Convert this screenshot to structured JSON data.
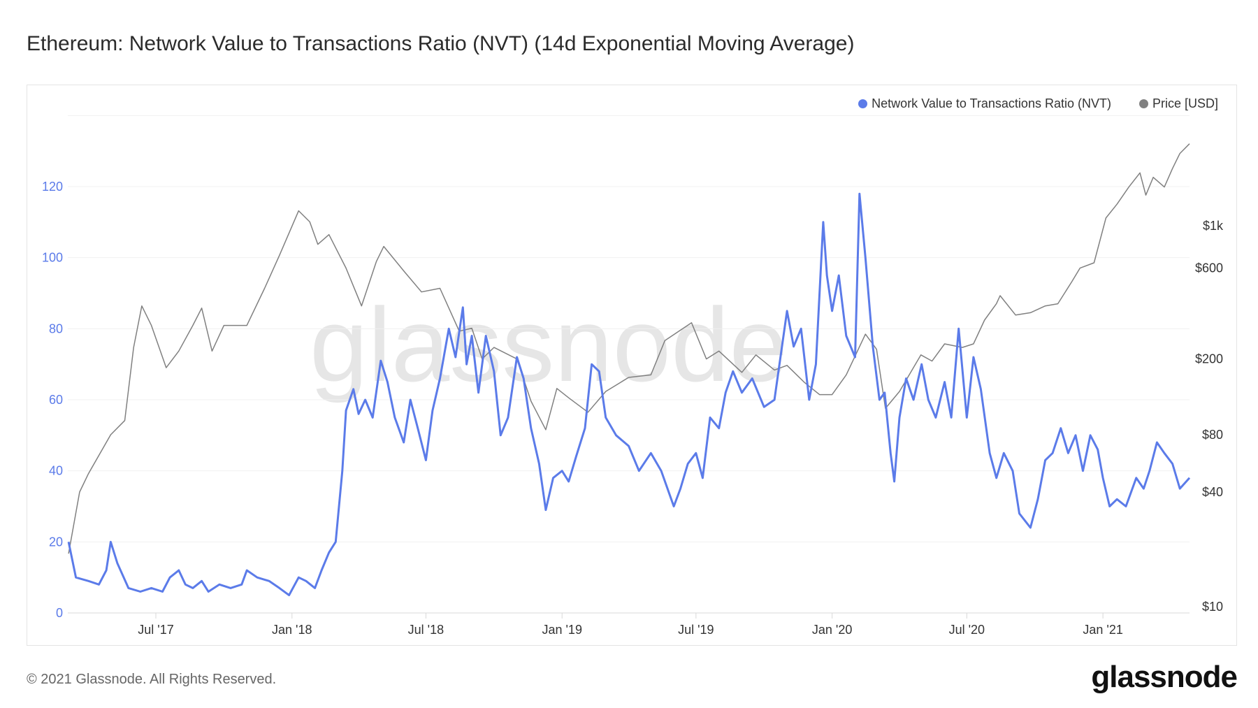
{
  "title": "Ethereum: Network Value to Transactions Ratio (NVT) (14d Exponential Moving Average)",
  "footer": "© 2021 Glassnode. All Rights Reserved.",
  "logo": "glassnode",
  "watermark": "glassnode",
  "chart_data": {
    "type": "line",
    "title": "Ethereum: Network Value to Transactions Ratio (NVT) (14d Exponential Moving Average)",
    "legend_placement": "top-right",
    "grid": true,
    "x_range": [
      "2017-03-04",
      "2021-04-28"
    ],
    "x_ticks": [
      {
        "label": "Jul '17",
        "date": "2017-07-01"
      },
      {
        "label": "Jan '18",
        "date": "2018-01-01"
      },
      {
        "label": "Jul '18",
        "date": "2018-07-01"
      },
      {
        "label": "Jan '19",
        "date": "2019-01-01"
      },
      {
        "label": "Jul '19",
        "date": "2019-07-01"
      },
      {
        "label": "Jan '20",
        "date": "2020-01-01"
      },
      {
        "label": "Jul '20",
        "date": "2020-07-01"
      },
      {
        "label": "Jan '21",
        "date": "2021-01-01"
      }
    ],
    "y_left": {
      "range": [
        0,
        140
      ],
      "ticks": [
        0,
        20,
        40,
        60,
        80,
        100,
        120
      ],
      "color": "#5b7be9"
    },
    "y_right": {
      "scale": "log",
      "range": [
        10,
        2900
      ],
      "ticks": [
        {
          "value": 10,
          "label": "$10"
        },
        {
          "value": 40,
          "label": "$40"
        },
        {
          "value": 80,
          "label": "$80"
        },
        {
          "value": 200,
          "label": "$200"
        },
        {
          "value": 600,
          "label": "$600"
        },
        {
          "value": 1000,
          "label": "$1k"
        }
      ]
    },
    "series": [
      {
        "name": "Network Value to Transactions Ratio (NVT)",
        "color": "#5b7be9",
        "axis": "left",
        "points": [
          [
            "2017-03-05",
            20
          ],
          [
            "2017-03-15",
            10
          ],
          [
            "2017-04-01",
            9
          ],
          [
            "2017-04-15",
            8
          ],
          [
            "2017-04-25",
            12
          ],
          [
            "2017-05-01",
            20
          ],
          [
            "2017-05-10",
            14
          ],
          [
            "2017-05-25",
            7
          ],
          [
            "2017-06-10",
            6
          ],
          [
            "2017-06-25",
            7
          ],
          [
            "2017-07-10",
            6
          ],
          [
            "2017-07-20",
            10
          ],
          [
            "2017-08-01",
            12
          ],
          [
            "2017-08-10",
            8
          ],
          [
            "2017-08-20",
            7
          ],
          [
            "2017-09-01",
            9
          ],
          [
            "2017-09-10",
            6
          ],
          [
            "2017-09-25",
            8
          ],
          [
            "2017-10-10",
            7
          ],
          [
            "2017-10-25",
            8
          ],
          [
            "2017-11-01",
            12
          ],
          [
            "2017-11-15",
            10
          ],
          [
            "2017-12-01",
            9
          ],
          [
            "2017-12-15",
            7
          ],
          [
            "2017-12-28",
            5
          ],
          [
            "2018-01-10",
            10
          ],
          [
            "2018-01-20",
            9
          ],
          [
            "2018-02-01",
            7
          ],
          [
            "2018-02-10",
            12
          ],
          [
            "2018-02-20",
            17
          ],
          [
            "2018-03-01",
            20
          ],
          [
            "2018-03-10",
            40
          ],
          [
            "2018-03-15",
            57
          ],
          [
            "2018-03-25",
            63
          ],
          [
            "2018-04-01",
            56
          ],
          [
            "2018-04-10",
            60
          ],
          [
            "2018-04-20",
            55
          ],
          [
            "2018-05-01",
            71
          ],
          [
            "2018-05-10",
            65
          ],
          [
            "2018-05-20",
            55
          ],
          [
            "2018-06-01",
            48
          ],
          [
            "2018-06-10",
            60
          ],
          [
            "2018-06-20",
            52
          ],
          [
            "2018-07-01",
            43
          ],
          [
            "2018-07-10",
            57
          ],
          [
            "2018-07-20",
            66
          ],
          [
            "2018-08-01",
            80
          ],
          [
            "2018-08-10",
            72
          ],
          [
            "2018-08-20",
            86
          ],
          [
            "2018-08-25",
            70
          ],
          [
            "2018-09-01",
            78
          ],
          [
            "2018-09-10",
            62
          ],
          [
            "2018-09-20",
            78
          ],
          [
            "2018-10-01",
            68
          ],
          [
            "2018-10-10",
            50
          ],
          [
            "2018-10-20",
            55
          ],
          [
            "2018-11-01",
            72
          ],
          [
            "2018-11-10",
            66
          ],
          [
            "2018-11-20",
            52
          ],
          [
            "2018-12-01",
            42
          ],
          [
            "2018-12-10",
            29
          ],
          [
            "2018-12-20",
            38
          ],
          [
            "2019-01-01",
            40
          ],
          [
            "2019-01-10",
            37
          ],
          [
            "2019-01-20",
            44
          ],
          [
            "2019-02-01",
            52
          ],
          [
            "2019-02-10",
            70
          ],
          [
            "2019-02-20",
            68
          ],
          [
            "2019-03-01",
            55
          ],
          [
            "2019-03-15",
            50
          ],
          [
            "2019-04-01",
            47
          ],
          [
            "2019-04-15",
            40
          ],
          [
            "2019-05-01",
            45
          ],
          [
            "2019-05-15",
            40
          ],
          [
            "2019-06-01",
            30
          ],
          [
            "2019-06-10",
            35
          ],
          [
            "2019-06-20",
            42
          ],
          [
            "2019-07-01",
            45
          ],
          [
            "2019-07-10",
            38
          ],
          [
            "2019-07-20",
            55
          ],
          [
            "2019-08-01",
            52
          ],
          [
            "2019-08-10",
            62
          ],
          [
            "2019-08-20",
            68
          ],
          [
            "2019-09-01",
            62
          ],
          [
            "2019-09-15",
            66
          ],
          [
            "2019-10-01",
            58
          ],
          [
            "2019-10-15",
            60
          ],
          [
            "2019-11-01",
            85
          ],
          [
            "2019-11-10",
            75
          ],
          [
            "2019-11-20",
            80
          ],
          [
            "2019-12-01",
            60
          ],
          [
            "2019-12-10",
            70
          ],
          [
            "2019-12-20",
            110
          ],
          [
            "2019-12-25",
            95
          ],
          [
            "2020-01-01",
            85
          ],
          [
            "2020-01-10",
            95
          ],
          [
            "2020-01-20",
            78
          ],
          [
            "2020-02-01",
            72
          ],
          [
            "2020-02-07",
            118
          ],
          [
            "2020-02-15",
            100
          ],
          [
            "2020-02-25",
            75
          ],
          [
            "2020-03-05",
            60
          ],
          [
            "2020-03-12",
            62
          ],
          [
            "2020-03-20",
            45
          ],
          [
            "2020-03-25",
            37
          ],
          [
            "2020-04-01",
            55
          ],
          [
            "2020-04-10",
            66
          ],
          [
            "2020-04-20",
            60
          ],
          [
            "2020-05-01",
            70
          ],
          [
            "2020-05-10",
            60
          ],
          [
            "2020-05-20",
            55
          ],
          [
            "2020-06-01",
            65
          ],
          [
            "2020-06-10",
            55
          ],
          [
            "2020-06-20",
            80
          ],
          [
            "2020-07-01",
            55
          ],
          [
            "2020-07-10",
            72
          ],
          [
            "2020-07-20",
            63
          ],
          [
            "2020-08-01",
            45
          ],
          [
            "2020-08-10",
            38
          ],
          [
            "2020-08-20",
            45
          ],
          [
            "2020-09-01",
            40
          ],
          [
            "2020-09-10",
            28
          ],
          [
            "2020-09-25",
            24
          ],
          [
            "2020-10-05",
            32
          ],
          [
            "2020-10-15",
            43
          ],
          [
            "2020-10-25",
            45
          ],
          [
            "2020-11-05",
            52
          ],
          [
            "2020-11-15",
            45
          ],
          [
            "2020-11-25",
            50
          ],
          [
            "2020-12-05",
            40
          ],
          [
            "2020-12-15",
            50
          ],
          [
            "2020-12-25",
            46
          ],
          [
            "2021-01-01",
            38
          ],
          [
            "2021-01-10",
            30
          ],
          [
            "2021-01-20",
            32
          ],
          [
            "2021-02-01",
            30
          ],
          [
            "2021-02-15",
            38
          ],
          [
            "2021-02-25",
            35
          ],
          [
            "2021-03-05",
            40
          ],
          [
            "2021-03-15",
            48
          ],
          [
            "2021-03-25",
            45
          ],
          [
            "2021-04-05",
            42
          ],
          [
            "2021-04-15",
            35
          ],
          [
            "2021-04-28",
            38
          ]
        ]
      },
      {
        "name": "Price [USD]",
        "color": "#808080",
        "axis": "right",
        "points": [
          [
            "2017-03-05",
            19
          ],
          [
            "2017-03-20",
            40
          ],
          [
            "2017-04-01",
            50
          ],
          [
            "2017-05-01",
            80
          ],
          [
            "2017-05-20",
            95
          ],
          [
            "2017-06-01",
            230
          ],
          [
            "2017-06-12",
            380
          ],
          [
            "2017-06-25",
            300
          ],
          [
            "2017-07-15",
            180
          ],
          [
            "2017-08-01",
            220
          ],
          [
            "2017-08-20",
            300
          ],
          [
            "2017-09-01",
            370
          ],
          [
            "2017-09-15",
            220
          ],
          [
            "2017-10-01",
            300
          ],
          [
            "2017-11-01",
            300
          ],
          [
            "2017-11-25",
            470
          ],
          [
            "2017-12-15",
            700
          ],
          [
            "2018-01-10",
            1200
          ],
          [
            "2018-01-25",
            1050
          ],
          [
            "2018-02-05",
            800
          ],
          [
            "2018-02-20",
            900
          ],
          [
            "2018-03-15",
            600
          ],
          [
            "2018-04-05",
            380
          ],
          [
            "2018-04-25",
            650
          ],
          [
            "2018-05-05",
            780
          ],
          [
            "2018-06-01",
            580
          ],
          [
            "2018-06-25",
            450
          ],
          [
            "2018-07-20",
            470
          ],
          [
            "2018-08-15",
            280
          ],
          [
            "2018-09-01",
            290
          ],
          [
            "2018-09-15",
            200
          ],
          [
            "2018-10-01",
            230
          ],
          [
            "2018-11-01",
            200
          ],
          [
            "2018-11-20",
            120
          ],
          [
            "2018-12-10",
            85
          ],
          [
            "2018-12-25",
            140
          ],
          [
            "2019-01-10",
            125
          ],
          [
            "2019-02-05",
            105
          ],
          [
            "2019-03-01",
            135
          ],
          [
            "2019-04-01",
            160
          ],
          [
            "2019-05-01",
            165
          ],
          [
            "2019-05-20",
            250
          ],
          [
            "2019-06-25",
            310
          ],
          [
            "2019-07-15",
            200
          ],
          [
            "2019-08-01",
            220
          ],
          [
            "2019-09-01",
            170
          ],
          [
            "2019-09-20",
            210
          ],
          [
            "2019-10-15",
            175
          ],
          [
            "2019-11-01",
            185
          ],
          [
            "2019-11-25",
            150
          ],
          [
            "2019-12-15",
            130
          ],
          [
            "2020-01-01",
            130
          ],
          [
            "2020-01-20",
            165
          ],
          [
            "2020-02-15",
            270
          ],
          [
            "2020-03-01",
            225
          ],
          [
            "2020-03-13",
            110
          ],
          [
            "2020-04-01",
            135
          ],
          [
            "2020-04-30",
            210
          ],
          [
            "2020-05-15",
            195
          ],
          [
            "2020-06-01",
            240
          ],
          [
            "2020-06-25",
            230
          ],
          [
            "2020-07-10",
            240
          ],
          [
            "2020-07-25",
            320
          ],
          [
            "2020-08-10",
            390
          ],
          [
            "2020-08-15",
            430
          ],
          [
            "2020-09-05",
            340
          ],
          [
            "2020-09-25",
            350
          ],
          [
            "2020-10-15",
            380
          ],
          [
            "2020-11-01",
            390
          ],
          [
            "2020-11-20",
            510
          ],
          [
            "2020-12-01",
            600
          ],
          [
            "2020-12-20",
            640
          ],
          [
            "2021-01-05",
            1100
          ],
          [
            "2021-01-20",
            1300
          ],
          [
            "2021-02-05",
            1600
          ],
          [
            "2021-02-20",
            1900
          ],
          [
            "2021-02-28",
            1450
          ],
          [
            "2021-03-10",
            1800
          ],
          [
            "2021-03-25",
            1600
          ],
          [
            "2021-04-05",
            2000
          ],
          [
            "2021-04-15",
            2400
          ],
          [
            "2021-04-28",
            2700
          ]
        ]
      }
    ]
  }
}
